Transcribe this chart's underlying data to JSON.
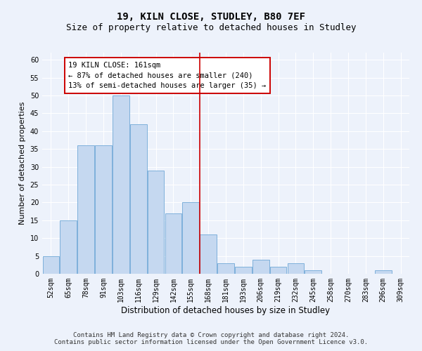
{
  "title1": "19, KILN CLOSE, STUDLEY, B80 7EF",
  "title2": "Size of property relative to detached houses in Studley",
  "xlabel": "Distribution of detached houses by size in Studley",
  "ylabel": "Number of detached properties",
  "categories": [
    "52sqm",
    "65sqm",
    "78sqm",
    "91sqm",
    "103sqm",
    "116sqm",
    "129sqm",
    "142sqm",
    "155sqm",
    "168sqm",
    "181sqm",
    "193sqm",
    "206sqm",
    "219sqm",
    "232sqm",
    "245sqm",
    "258sqm",
    "270sqm",
    "283sqm",
    "296sqm",
    "309sqm"
  ],
  "values": [
    5,
    15,
    36,
    36,
    50,
    42,
    29,
    17,
    20,
    11,
    3,
    2,
    4,
    2,
    3,
    1,
    0,
    0,
    0,
    1,
    0
  ],
  "bar_color": "#c5d8f0",
  "bar_edge_color": "#6fa8d6",
  "vline_x_index": 8.5,
  "vline_color": "#cc0000",
  "annotation_text": "19 KILN CLOSE: 161sqm\n← 87% of detached houses are smaller (240)\n13% of semi-detached houses are larger (35) →",
  "annotation_box_color": "white",
  "annotation_box_edge_color": "#cc0000",
  "ylim": [
    0,
    62
  ],
  "yticks": [
    0,
    5,
    10,
    15,
    20,
    25,
    30,
    35,
    40,
    45,
    50,
    55,
    60
  ],
  "footer1": "Contains HM Land Registry data © Crown copyright and database right 2024.",
  "footer2": "Contains public sector information licensed under the Open Government Licence v3.0.",
  "bg_color": "#edf2fb",
  "grid_color": "#ffffff",
  "title_fontsize": 10,
  "subtitle_fontsize": 9,
  "tick_fontsize": 7,
  "ylabel_fontsize": 8,
  "xlabel_fontsize": 8.5,
  "footer_fontsize": 6.5,
  "annot_fontsize": 7.5
}
